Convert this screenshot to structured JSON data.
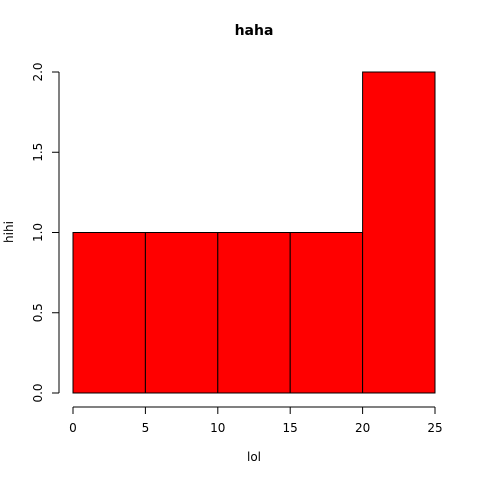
{
  "chart_data": {
    "type": "bar",
    "title": "haha",
    "xlabel": "lol",
    "ylabel": "hihi",
    "bins": [
      {
        "from": 0,
        "to": 5,
        "value": 1
      },
      {
        "from": 5,
        "to": 10,
        "value": 1
      },
      {
        "from": 10,
        "to": 15,
        "value": 1
      },
      {
        "from": 15,
        "to": 20,
        "value": 1
      },
      {
        "from": 20,
        "to": 25,
        "value": 2
      }
    ],
    "xlim": [
      0,
      25
    ],
    "ylim": [
      0,
      2
    ],
    "x_ticks": [
      0,
      5,
      10,
      15,
      20,
      25
    ],
    "y_ticks": [
      "0.0",
      "0.5",
      "1.0",
      "1.5",
      "2.0"
    ],
    "bar_color": "#ff0000",
    "border_color": "#000000",
    "grid": false
  }
}
